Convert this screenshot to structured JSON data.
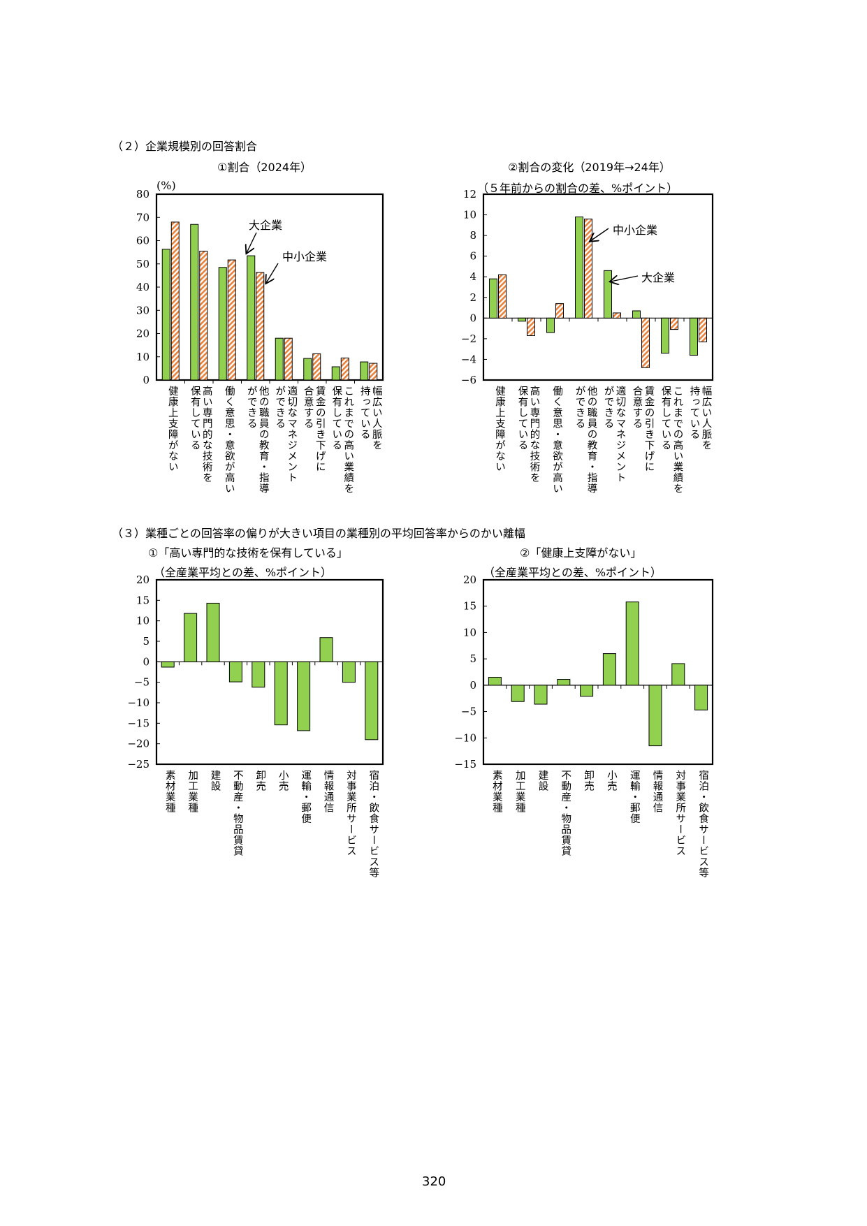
{
  "section2": {
    "heading": "（２）企業規模別の回答割合",
    "chart1_title": "①割合（2024年）",
    "chart2_title": "②割合の変化（2019年→24年）"
  },
  "section3": {
    "heading": "（３）業種ごとの回答率の偏りが大きい項目の業種別の平均回答率からのかい離幅",
    "chart3_title": "①「高い専門的な技術を保有している」",
    "chart4_title": "②「健康上支障がない」"
  },
  "page_number": "320",
  "colors": {
    "large": "#92d050",
    "sme": "#f4b183",
    "sme_stripe": "#e46c0a",
    "industry": "#92d050"
  },
  "chart_data": [
    {
      "id": "chart1",
      "type": "bar",
      "unit_label": "(%)",
      "ylim": [
        0,
        80
      ],
      "yticks": [
        0,
        10,
        20,
        30,
        40,
        50,
        60,
        70,
        80
      ],
      "categories": [
        "健康上支障がない",
        "高い専門的な技術を\n保有している",
        "働く意思・意欲が高い",
        "他の職員の教育・指導\nができる",
        "適切なマネジメント\nができる",
        "賃金の引き下げに\n合意する",
        "これまでの高い業績を\n保有している",
        "幅広い人脈を\n持っている"
      ],
      "series": [
        {
          "name": "大企業",
          "values": [
            56.3,
            67.0,
            48.5,
            53.5,
            18.0,
            9.3,
            5.7,
            7.8
          ]
        },
        {
          "name": "中小企業",
          "values": [
            68.0,
            55.5,
            51.7,
            46.3,
            18.0,
            11.3,
            9.5,
            7.2
          ]
        }
      ]
    },
    {
      "id": "chart2",
      "type": "bar",
      "unit_label": "（５年前からの割合の差、%ポイント）",
      "ylim": [
        -6,
        12
      ],
      "yticks": [
        -6,
        -4,
        -2,
        0,
        2,
        4,
        6,
        8,
        10,
        12
      ],
      "categories": [
        "健康上支障がない",
        "高い専門的な技術を\n保有している",
        "働く意思・意欲が高い",
        "他の職員の教育・指導\nができる",
        "適切なマネジメント\nができる",
        "賃金の引き下げに\n合意する",
        "これまでの高い業績を\n保有している",
        "幅広い人脈を\n持っている"
      ],
      "series": [
        {
          "name": "大企業",
          "values": [
            3.8,
            -0.3,
            -1.4,
            9.8,
            4.6,
            0.7,
            -3.4,
            -3.6
          ]
        },
        {
          "name": "中小企業",
          "values": [
            4.2,
            -1.7,
            1.4,
            9.6,
            0.5,
            -4.8,
            -1.1,
            -2.3
          ]
        }
      ]
    },
    {
      "id": "chart3",
      "type": "bar",
      "unit_label": "（全産業平均との差、%ポイント）",
      "ylim": [
        -25,
        20
      ],
      "yticks": [
        -25,
        -20,
        -15,
        -10,
        -5,
        0,
        5,
        10,
        15,
        20
      ],
      "categories": [
        "素材業種",
        "加工業種",
        "建設",
        "不動産・物品賃貸",
        "卸売",
        "小売",
        "運輸・郵便",
        "情報通信",
        "対事業所サービス",
        "宿泊・飲食サービス等"
      ],
      "values": [
        -1.3,
        11.8,
        14.3,
        -4.9,
        -6.2,
        -15.4,
        -16.8,
        5.9,
        -5.0,
        -19.0
      ]
    },
    {
      "id": "chart4",
      "type": "bar",
      "unit_label": "（全産業平均との差、%ポイント）",
      "ylim": [
        -15,
        20
      ],
      "yticks": [
        -15,
        -10,
        -5,
        0,
        5,
        10,
        15,
        20
      ],
      "categories": [
        "素材業種",
        "加工業種",
        "建設",
        "不動産・物品賃貸",
        "卸売",
        "小売",
        "運輸・郵便",
        "情報通信",
        "対事業所サービス",
        "宿泊・飲食サービス等"
      ],
      "values": [
        1.5,
        -3.1,
        -3.6,
        1.1,
        -2.1,
        6.0,
        15.8,
        -11.5,
        4.1,
        -4.7
      ]
    }
  ]
}
